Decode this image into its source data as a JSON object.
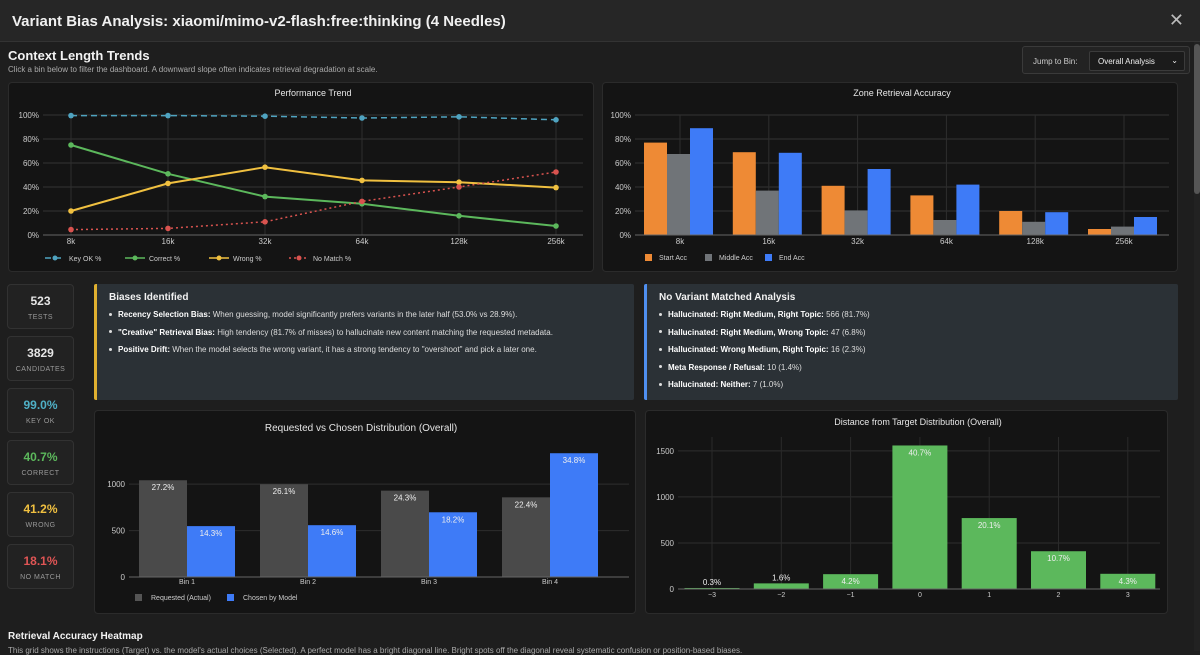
{
  "window": {
    "title": "Variant Bias Analysis: xiaomi/mimo-v2-flash:free:thinking (4 Needles)"
  },
  "context": {
    "title": "Context Length Trends",
    "subtitle": "Click a bin below to filter the dashboard. A downward slope often indicates retrieval degradation at scale.",
    "jump_label": "Jump to Bin:",
    "jump_value": "Overall Analysis"
  },
  "stats": [
    {
      "value": "523",
      "label": "TESTS",
      "color": "#e6e6e6"
    },
    {
      "value": "3829",
      "label": "CANDIDATES",
      "color": "#e6e6e6"
    },
    {
      "value": "99.0%",
      "label": "KEY OK",
      "color": "#4fb0c6"
    },
    {
      "value": "40.7%",
      "label": "CORRECT",
      "color": "#5cb85c"
    },
    {
      "value": "41.2%",
      "label": "WRONG",
      "color": "#f0c040"
    },
    {
      "value": "18.1%",
      "label": "NO MATCH",
      "color": "#e05555"
    }
  ],
  "biases": {
    "title": "Biases Identified",
    "items": [
      {
        "bold": "Recency Selection Bias:",
        "text": " When guessing, model significantly prefers variants in the later half (53.0% vs 28.9%)."
      },
      {
        "bold": "\"Creative\" Retrieval Bias:",
        "text": " High tendency (81.7% of misses) to hallucinate new content matching the requested metadata."
      },
      {
        "bold": "Positive Drift:",
        "text": " When the model selects the wrong variant, it has a strong tendency to \"overshoot\" and pick a later one."
      }
    ]
  },
  "no_match": {
    "title": "No Variant Matched Analysis",
    "items": [
      {
        "bold": "Hallucinated: Right Medium, Right Topic:",
        "text": " 566 (81.7%)"
      },
      {
        "bold": "Hallucinated: Right Medium, Wrong Topic:",
        "text": " 47 (6.8%)"
      },
      {
        "bold": "Hallucinated: Wrong Medium, Right Topic:",
        "text": " 16 (2.3%)"
      },
      {
        "bold": "Meta Response / Refusal:",
        "text": " 10 (1.4%)"
      },
      {
        "bold": "Hallucinated: Neither:",
        "text": " 7 (1.0%)"
      }
    ]
  },
  "heatmap": {
    "title": "Retrieval Accuracy Heatmap",
    "subtitle": "This grid shows the instructions (Target) vs. the model's actual choices (Selected). A perfect model has a bright diagonal line. Bright spots off the diagonal reveal systematic confusion or position-based biases."
  },
  "chart_data": [
    {
      "type": "line",
      "title": "Performance Trend",
      "categories": [
        "8k",
        "16k",
        "32k",
        "64k",
        "128k",
        "256k"
      ],
      "ylim": [
        0,
        100
      ],
      "yticks": [
        "0%",
        "20%",
        "40%",
        "60%",
        "80%",
        "100%"
      ],
      "series": [
        {
          "name": "Key OK %",
          "color": "#4fa3c0",
          "dash": "6,4",
          "values": [
            99.5,
            99.5,
            99,
            97.5,
            98.5,
            96
          ]
        },
        {
          "name": "Correct %",
          "color": "#5cb85c",
          "dash": "",
          "values": [
            75,
            51,
            32,
            26,
            16,
            7.5
          ]
        },
        {
          "name": "Wrong %",
          "color": "#f0c040",
          "dash": "",
          "values": [
            20,
            43,
            56.5,
            45.5,
            44,
            39.5
          ]
        },
        {
          "name": "No Match %",
          "color": "#d9534f",
          "dash": "2,3",
          "values": [
            4.5,
            5.5,
            11,
            28,
            40,
            52.5
          ]
        }
      ]
    },
    {
      "type": "bar",
      "title": "Zone Retrieval Accuracy",
      "categories": [
        "8k",
        "16k",
        "32k",
        "64k",
        "128k",
        "256k"
      ],
      "ylim": [
        0,
        100
      ],
      "yticks": [
        "0%",
        "20%",
        "40%",
        "60%",
        "80%",
        "100%"
      ],
      "series": [
        {
          "name": "Start Acc",
          "color": "#ee8a35",
          "values": [
            77,
            69,
            41,
            33,
            20,
            5
          ]
        },
        {
          "name": "Middle Acc",
          "color": "#707478",
          "values": [
            67.5,
            37,
            20.5,
            12.5,
            11,
            7
          ]
        },
        {
          "name": "End Acc",
          "color": "#3e7bf7",
          "values": [
            89,
            68.5,
            55,
            42,
            19,
            15
          ]
        }
      ]
    },
    {
      "type": "bar",
      "title": "Requested vs Chosen Distribution (Overall)",
      "categories": [
        "Bin 1",
        "Bin 2",
        "Bin 3",
        "Bin 4"
      ],
      "ylim": [
        0,
        1400
      ],
      "yticks": [
        "0",
        "500",
        "1000"
      ],
      "series": [
        {
          "name": "Requested (Actual)",
          "color": "#4a4a4a",
          "values": [
            1042,
            999,
            930,
            858
          ],
          "labels": [
            "27.2%",
            "26.1%",
            "24.3%",
            "22.4%"
          ]
        },
        {
          "name": "Chosen by Model",
          "color": "#3e7bf7",
          "values": [
            548,
            558,
            697,
            1333
          ],
          "labels": [
            "14.3%",
            "14.6%",
            "18.2%",
            "34.8%"
          ]
        }
      ]
    },
    {
      "type": "bar",
      "title": "Distance from Target Distribution (Overall)",
      "categories": [
        "−3",
        "−2",
        "−1",
        "0",
        "1",
        "2",
        "3"
      ],
      "ylim": [
        0,
        1650
      ],
      "yticks": [
        "0",
        "500",
        "1000",
        "1500"
      ],
      "series": [
        {
          "name": "Distance",
          "color": "#5cb85c",
          "values": [
            11,
            61,
            161,
            1558,
            770,
            410,
            165
          ],
          "labels": [
            "0.3%",
            "1.6%",
            "4.2%",
            "40.7%",
            "20.1%",
            "10.7%",
            "4.3%"
          ]
        }
      ]
    }
  ]
}
